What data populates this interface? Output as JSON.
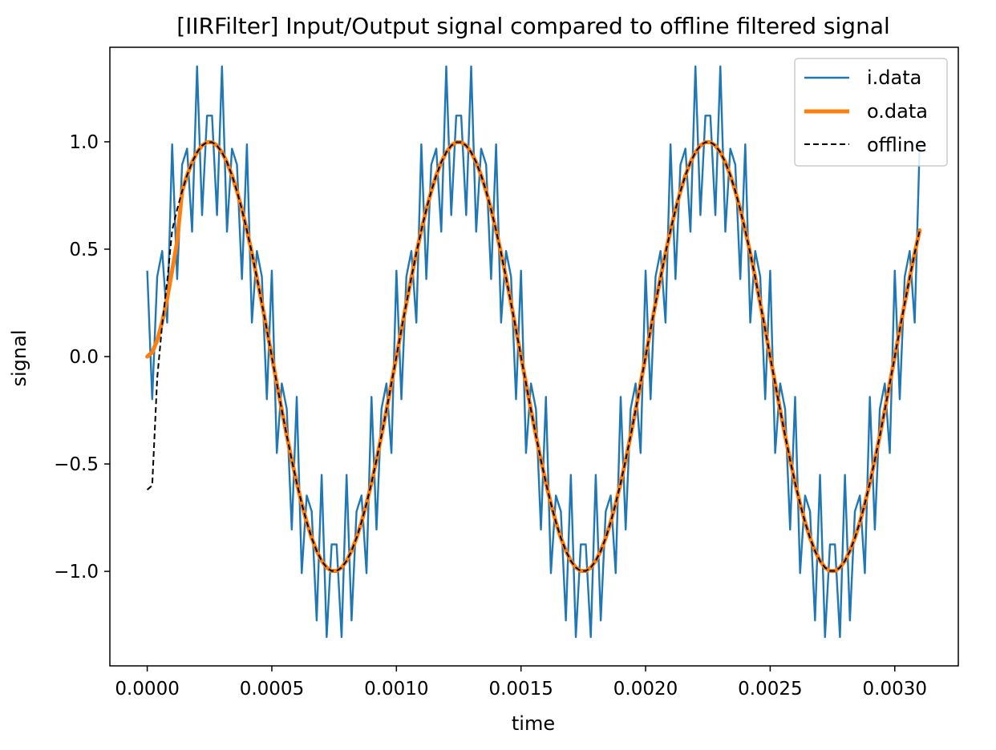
{
  "chart_data": {
    "type": "line",
    "title": "[IIRFilter] Input/Output signal compared to offline filtered signal",
    "xlabel": "time",
    "ylabel": "signal",
    "xlim": [
      -0.00015,
      0.003255
    ],
    "ylim": [
      -1.44,
      1.44
    ],
    "xticks": [
      0.0,
      0.0005,
      0.001,
      0.0015,
      0.002,
      0.0025,
      0.003
    ],
    "xtick_labels": [
      "0.0000",
      "0.0005",
      "0.0010",
      "0.0015",
      "0.0020",
      "0.0025",
      "0.0030"
    ],
    "yticks": [
      -1.0,
      -0.5,
      0.0,
      0.5,
      1.0
    ],
    "ytick_labels": [
      "−1.0",
      "−0.5",
      "0.0",
      "0.5",
      "1.0"
    ],
    "grid": false,
    "legend_position": "top-right",
    "sampling": {
      "t_start": 0.0,
      "t_step": 2e-05,
      "samples": 156
    },
    "series": [
      {
        "name": "i.data",
        "color": "#1f77b4",
        "style": "solid",
        "formula": "sin(2*pi*1000*t) + 0.4*sin(2*pi*20000*t + pi/2)"
      },
      {
        "name": "o.data",
        "color": "#ff7f0e",
        "style": "solid-thick",
        "formula": "sin(2*pi*1000*t) after startup transient"
      },
      {
        "name": "offline",
        "color": "#000000",
        "style": "dashed",
        "formula": "sin(2*pi*1000*t) with initial deviation to -0.62"
      }
    ]
  }
}
